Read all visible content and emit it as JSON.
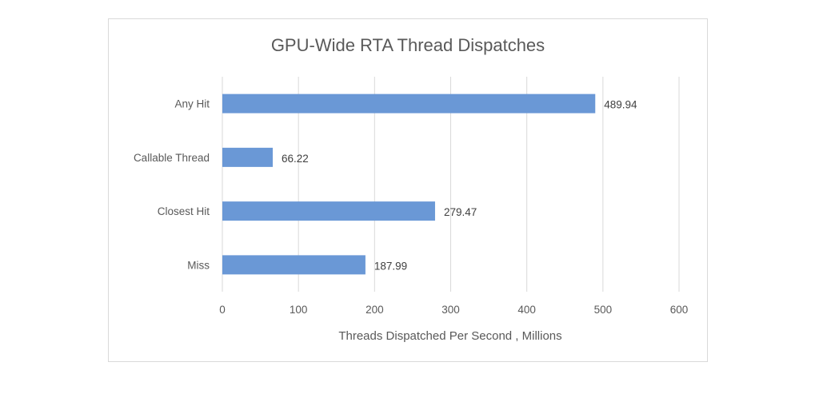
{
  "chart_data": {
    "type": "bar",
    "orientation": "horizontal",
    "title": "GPU-Wide RTA Thread Dispatches",
    "xlabel": "Threads Dispatched Per Second , Millions",
    "ylabel": "",
    "categories": [
      "Any Hit",
      "Callable Thread",
      "Closest Hit",
      "Miss"
    ],
    "values": [
      489.94,
      66.22,
      279.47,
      187.99
    ],
    "data_labels": [
      "489.94",
      "66.22",
      "279.47",
      "187.99"
    ],
    "xlim": [
      0,
      600
    ],
    "xticks": [
      0,
      100,
      200,
      300,
      400,
      500,
      600
    ],
    "grid": true,
    "legend": "none",
    "colors": {
      "bar": "#6a98d6",
      "grid": "#d9d9d9",
      "text": "#595959"
    }
  }
}
